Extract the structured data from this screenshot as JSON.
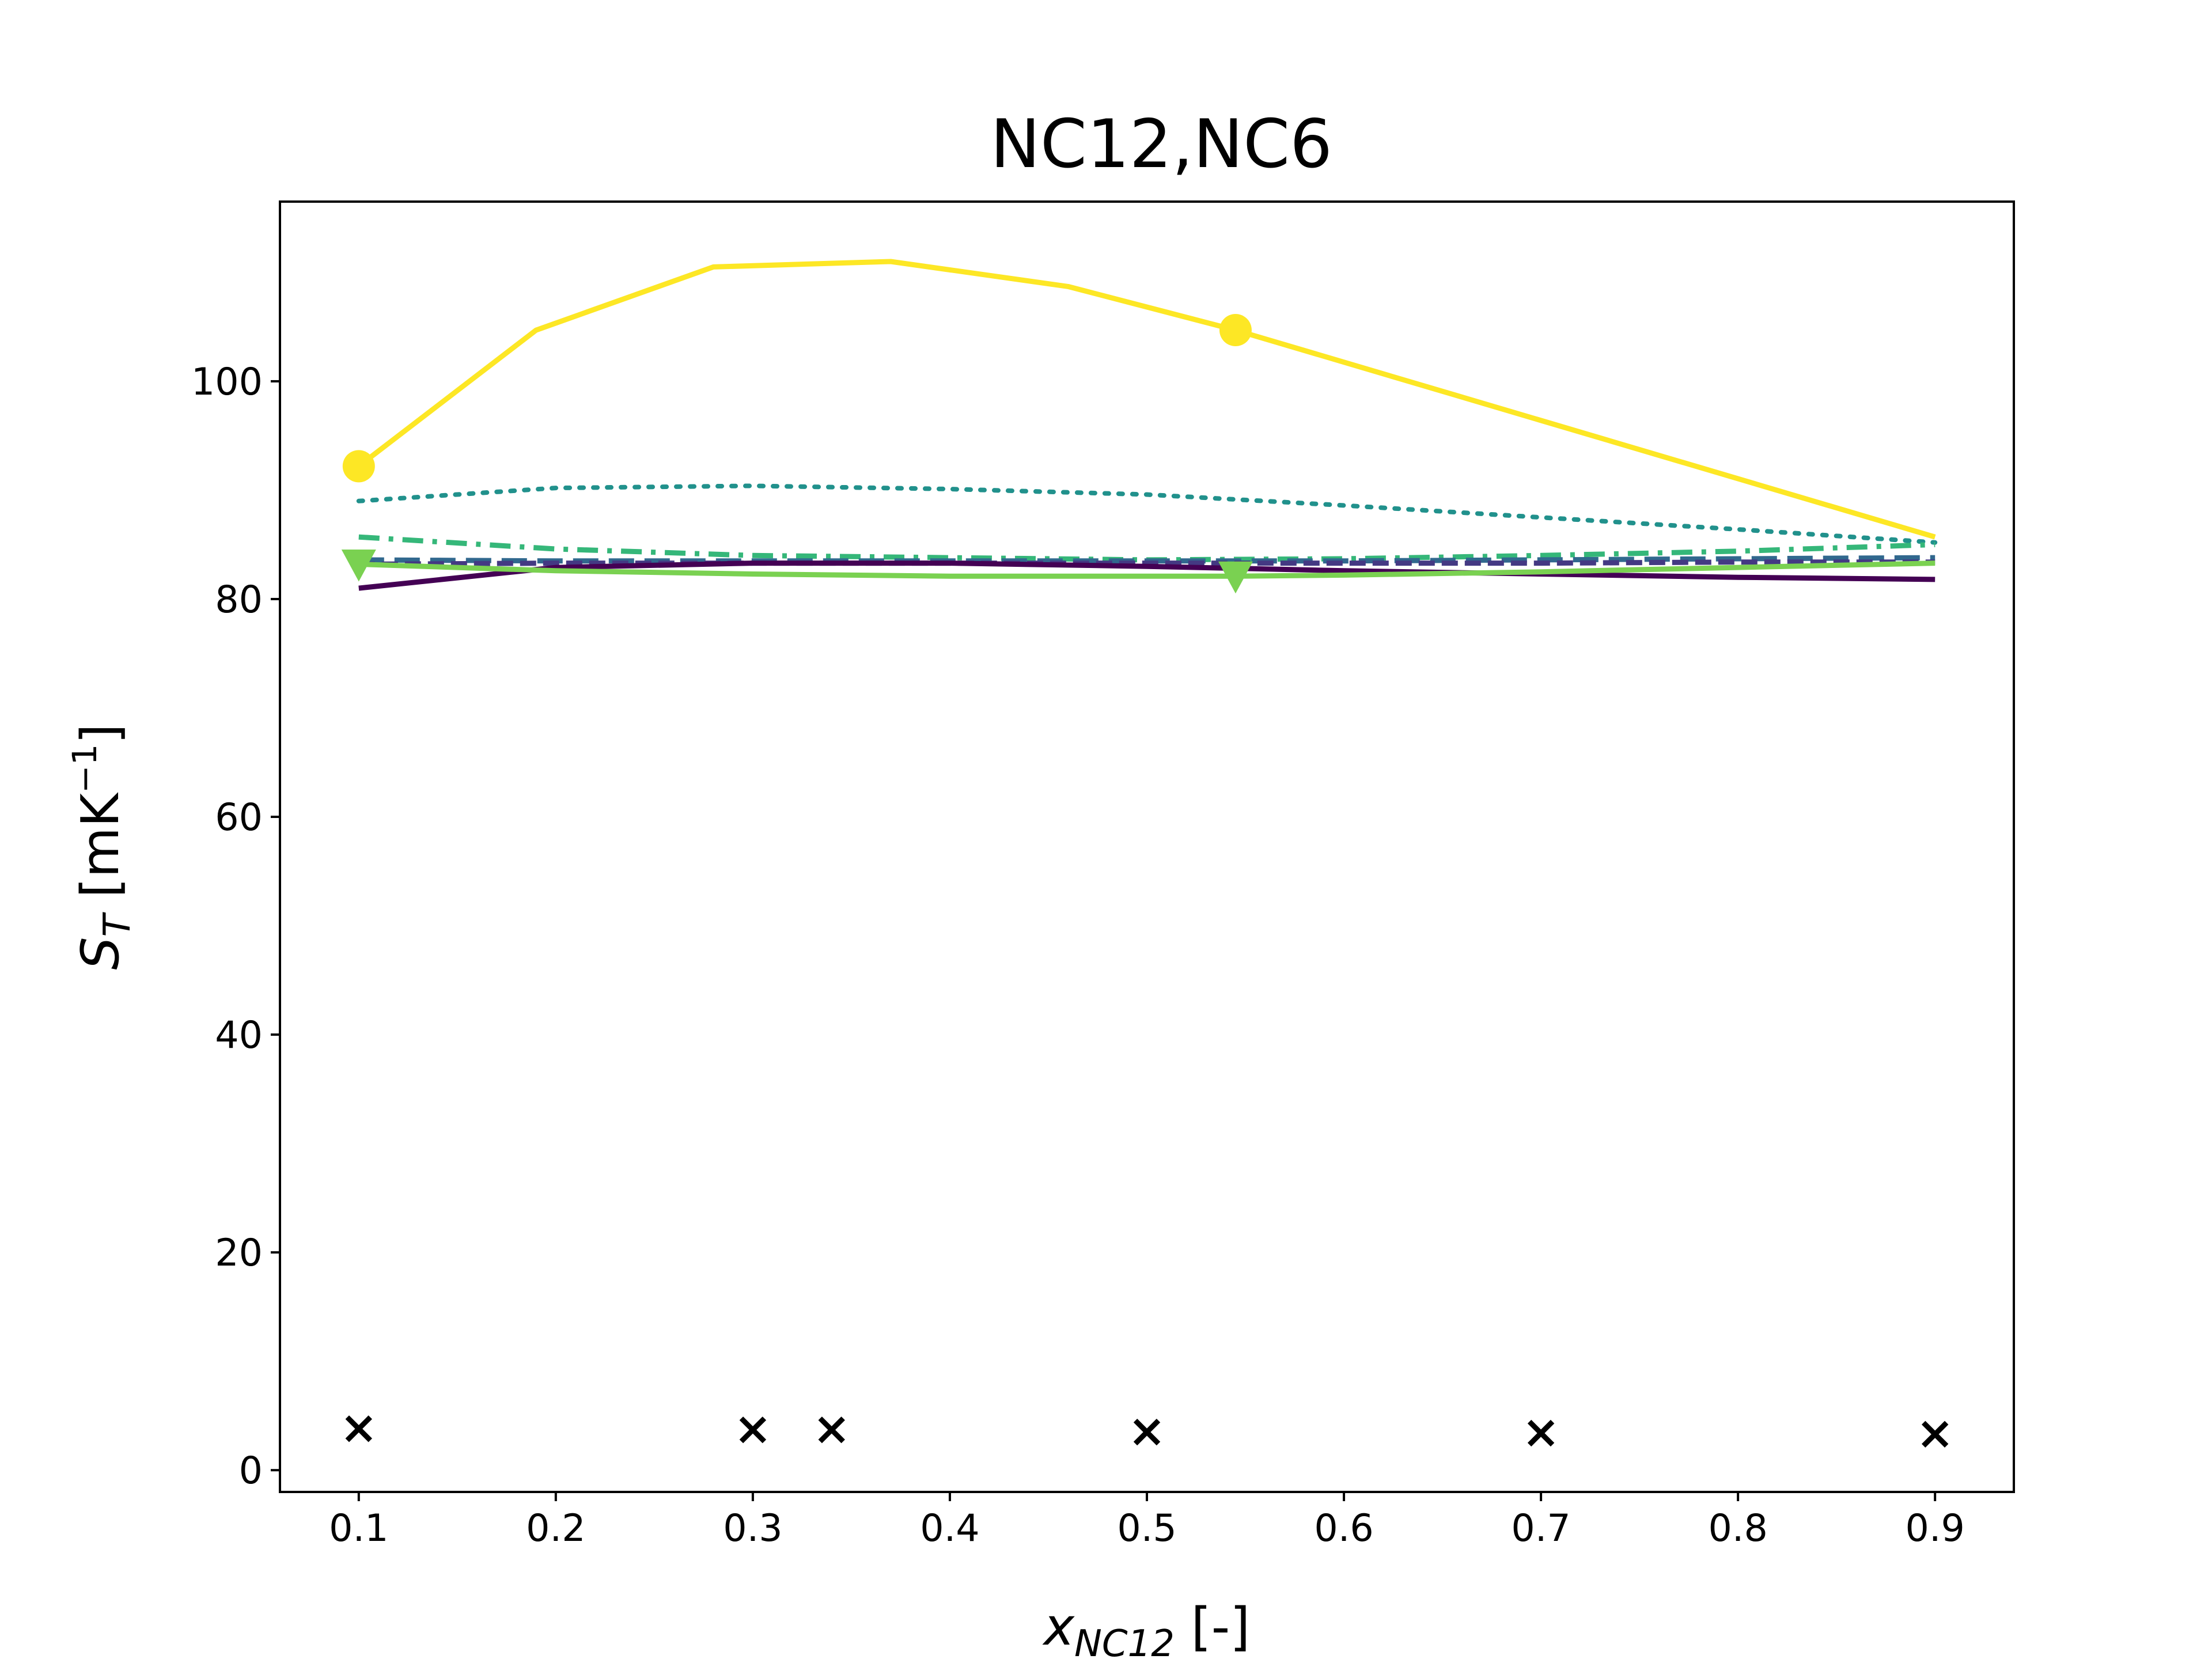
{
  "chart_data": {
    "type": "line",
    "title": "NC12,NC6",
    "xlabel": {
      "base": "x",
      "sub": "NC12",
      "suffix": " [-]"
    },
    "ylabel": {
      "base": "S",
      "sub": "T",
      "unit_pre": " [mK",
      "unit_sup": "−1",
      "unit_post": "]"
    },
    "xlim": [
      0.06,
      0.94
    ],
    "ylim": [
      -2,
      116.5
    ],
    "xticks": [
      0.1,
      0.2,
      0.3,
      0.4,
      0.5,
      0.6,
      0.7,
      0.8,
      0.9
    ],
    "xtick_labels": [
      "0.1",
      "0.2",
      "0.3",
      "0.4",
      "0.5",
      "0.6",
      "0.7",
      "0.8",
      "0.9"
    ],
    "yticks": [
      0,
      20,
      40,
      60,
      80,
      100
    ],
    "ytick_labels": [
      "0",
      "20",
      "40",
      "60",
      "80",
      "100"
    ],
    "grid": false,
    "legend": "none",
    "series": [
      {
        "color": "#fde725",
        "style": "solid",
        "marker": "circle",
        "x": [
          0.1,
          0.19,
          0.28,
          0.37,
          0.46,
          0.545,
          0.9
        ],
        "y": [
          92.2,
          104.7,
          110.5,
          111.0,
          108.7,
          104.7,
          85.7
        ],
        "marker_x": [
          0.1,
          0.545
        ],
        "marker_y": [
          92.2,
          104.7
        ]
      },
      {
        "color": "#21918c",
        "style": "dotted",
        "marker": "none",
        "x": [
          0.1,
          0.2,
          0.3,
          0.4,
          0.5,
          0.6,
          0.7,
          0.8,
          0.9
        ],
        "y": [
          89.0,
          90.2,
          90.4,
          90.1,
          89.6,
          88.6,
          87.5,
          86.4,
          85.2
        ]
      },
      {
        "color": "#35b779",
        "style": "dashdot",
        "marker": "none",
        "x": [
          0.1,
          0.2,
          0.3,
          0.4,
          0.5,
          0.6,
          0.7,
          0.8,
          0.9
        ],
        "y": [
          85.7,
          84.6,
          84.0,
          83.8,
          83.6,
          83.7,
          84.0,
          84.4,
          85.0
        ]
      },
      {
        "color": "#31688e",
        "style": "longdash",
        "marker": "none",
        "x": [
          0.1,
          0.2,
          0.3,
          0.4,
          0.5,
          0.6,
          0.7,
          0.8,
          0.9
        ],
        "y": [
          83.6,
          83.5,
          83.5,
          83.5,
          83.5,
          83.5,
          83.6,
          83.7,
          83.8
        ]
      },
      {
        "color": "#443983",
        "style": "dashed",
        "marker": "none",
        "x": [
          0.1,
          0.2,
          0.3,
          0.4,
          0.5,
          0.6,
          0.7,
          0.8,
          0.9
        ],
        "y": [
          83.2,
          83.3,
          83.3,
          83.3,
          83.3,
          83.3,
          83.3,
          83.4,
          83.4
        ]
      },
      {
        "color": "#440154",
        "style": "solid",
        "marker": "none",
        "x": [
          0.1,
          0.2,
          0.3,
          0.4,
          0.5,
          0.6,
          0.7,
          0.8,
          0.9
        ],
        "y": [
          81.0,
          82.9,
          83.3,
          83.3,
          83.0,
          82.6,
          82.3,
          82.0,
          81.8
        ]
      },
      {
        "color": "#7ad151",
        "style": "solid",
        "marker": "triangle_down",
        "x": [
          0.1,
          0.2,
          0.3,
          0.4,
          0.5,
          0.545,
          0.6,
          0.7,
          0.8,
          0.9
        ],
        "y": [
          83.2,
          82.6,
          82.3,
          82.1,
          82.1,
          82.1,
          82.2,
          82.5,
          82.9,
          83.3
        ],
        "marker_x": [
          0.1,
          0.545
        ],
        "marker_y": [
          83.2,
          82.1
        ]
      },
      {
        "color": "#000000",
        "style": "none",
        "marker": "x",
        "x": [
          0.1,
          0.3,
          0.34,
          0.5,
          0.7,
          0.9
        ],
        "y": [
          3.8,
          3.7,
          3.7,
          3.5,
          3.4,
          3.3
        ]
      }
    ]
  }
}
